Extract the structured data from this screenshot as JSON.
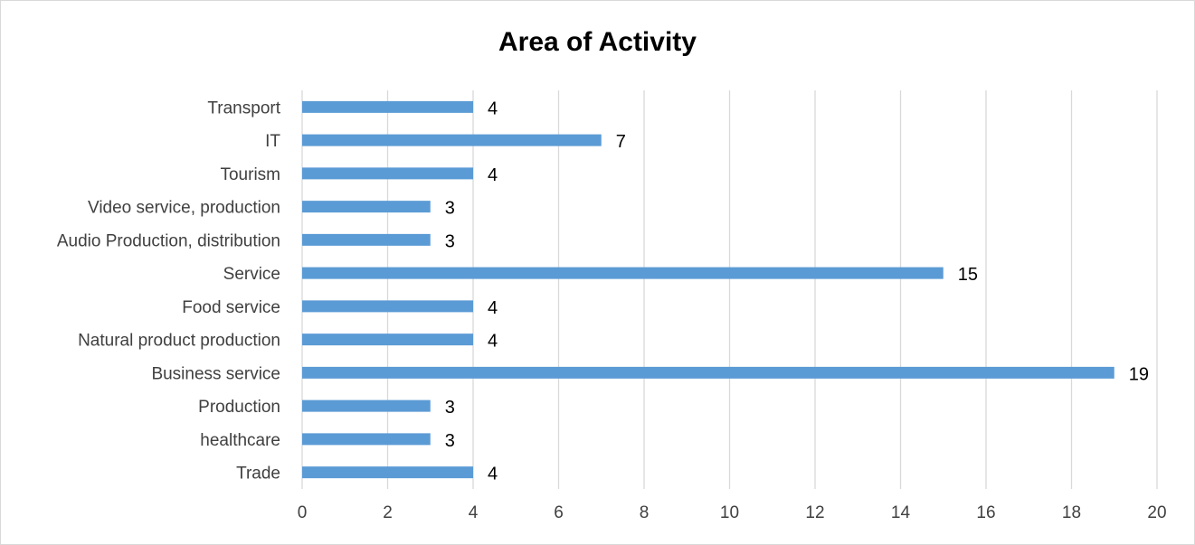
{
  "chart_data": {
    "type": "bar",
    "orientation": "horizontal",
    "title": "Area of Activity",
    "xlabel": "",
    "ylabel": "",
    "categories": [
      "Trade",
      "healthcare",
      "Production",
      "Business service",
      "Natural product production",
      "Food service",
      "Service",
      "Audio Production, distribution",
      "Video service, production",
      "Tourism",
      "IT",
      "Transport"
    ],
    "values": [
      4,
      3,
      3,
      19,
      4,
      4,
      15,
      3,
      3,
      4,
      7,
      4
    ],
    "xlim": [
      0,
      20
    ],
    "x_ticks": [
      0,
      2,
      4,
      6,
      8,
      10,
      12,
      14,
      16,
      18,
      20
    ],
    "grid": "vertical",
    "legend": "none",
    "data_labels": true,
    "colors": {
      "bar": "#5b9bd5",
      "grid": "#d9d9d9",
      "text": "#404040",
      "border": "#d9d9d9"
    }
  }
}
